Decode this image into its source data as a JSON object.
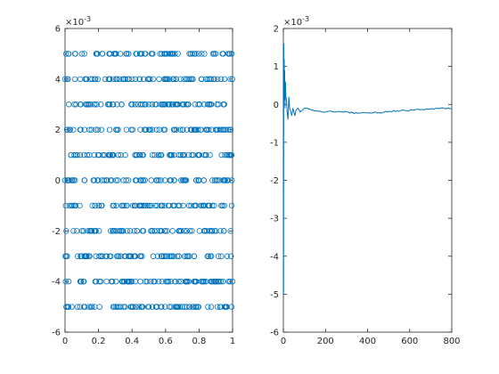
{
  "chart_data": [
    {
      "type": "scatter",
      "title": "",
      "xlabel": "",
      "ylabel": "",
      "multiplier_label": {
        "base": "×10",
        "exp": "-3"
      },
      "xlim": [
        0,
        1
      ],
      "ylim": [
        -6,
        6
      ],
      "xticks": [
        "0",
        "0.2",
        "0.4",
        "0.6",
        "0.8",
        "1"
      ],
      "xtick_values": [
        0,
        0.2,
        0.4,
        0.6,
        0.8,
        1
      ],
      "yticks": [
        "-6",
        "-4",
        "-2",
        "0",
        "2",
        "4",
        "6"
      ],
      "ytick_values": [
        -6,
        -4,
        -2,
        0,
        2,
        4,
        6
      ],
      "marker": "open-circle",
      "color": "#0072bd",
      "point_generation_note": "Roughly 800 points uniformly spread over x in [0,1], with y quantized to integer levels -5..5 (×10^-3).",
      "y_levels": [
        -5,
        -4,
        -3,
        -2,
        -1,
        0,
        1,
        2,
        3,
        4,
        5
      ],
      "points_per_level_approx": 72
    },
    {
      "type": "line",
      "title": "",
      "xlabel": "",
      "ylabel": "",
      "multiplier_label": {
        "base": "×10",
        "exp": "-3"
      },
      "xlim": [
        0,
        800
      ],
      "ylim": [
        -6,
        2
      ],
      "xticks": [
        "0",
        "200",
        "400",
        "600",
        "800"
      ],
      "xtick_values": [
        0,
        200,
        400,
        600,
        800
      ],
      "yticks": [
        "-6",
        "-5",
        "-4",
        "-3",
        "-2",
        "-1",
        "0",
        "1",
        "2"
      ],
      "ytick_values": [
        -6,
        -5,
        -4,
        -3,
        -2,
        -1,
        0,
        1,
        2
      ],
      "color": "#0072bd",
      "series": [
        {
          "x": [
            1,
            2,
            3,
            4,
            5,
            6,
            8,
            10,
            12,
            15,
            18,
            22,
            26,
            30,
            35,
            40,
            45,
            50,
            55,
            60,
            70,
            80,
            90,
            100,
            120,
            140,
            160,
            180,
            200,
            220,
            250,
            280,
            300,
            330,
            360,
            400,
            430,
            460,
            480,
            500,
            540,
            580,
            620,
            660,
            700,
            740,
            780,
            800
          ],
          "y": [
            -5.0,
            1.6,
            0.1,
            1.2,
            0.4,
            0.9,
            -0.1,
            0.6,
            0.2,
            0.1,
            -0.2,
            -0.4,
            0.2,
            -0.1,
            -0.2,
            -0.3,
            -0.1,
            -0.2,
            -0.3,
            -0.15,
            -0.1,
            -0.2,
            -0.15,
            -0.1,
            -0.12,
            -0.15,
            -0.18,
            -0.2,
            -0.2,
            -0.18,
            -0.2,
            -0.19,
            -0.2,
            -0.22,
            -0.23,
            -0.22,
            -0.21,
            -0.22,
            -0.2,
            -0.18,
            -0.17,
            -0.16,
            -0.15,
            -0.13,
            -0.12,
            -0.11,
            -0.1,
            -0.11
          ]
        }
      ]
    }
  ]
}
